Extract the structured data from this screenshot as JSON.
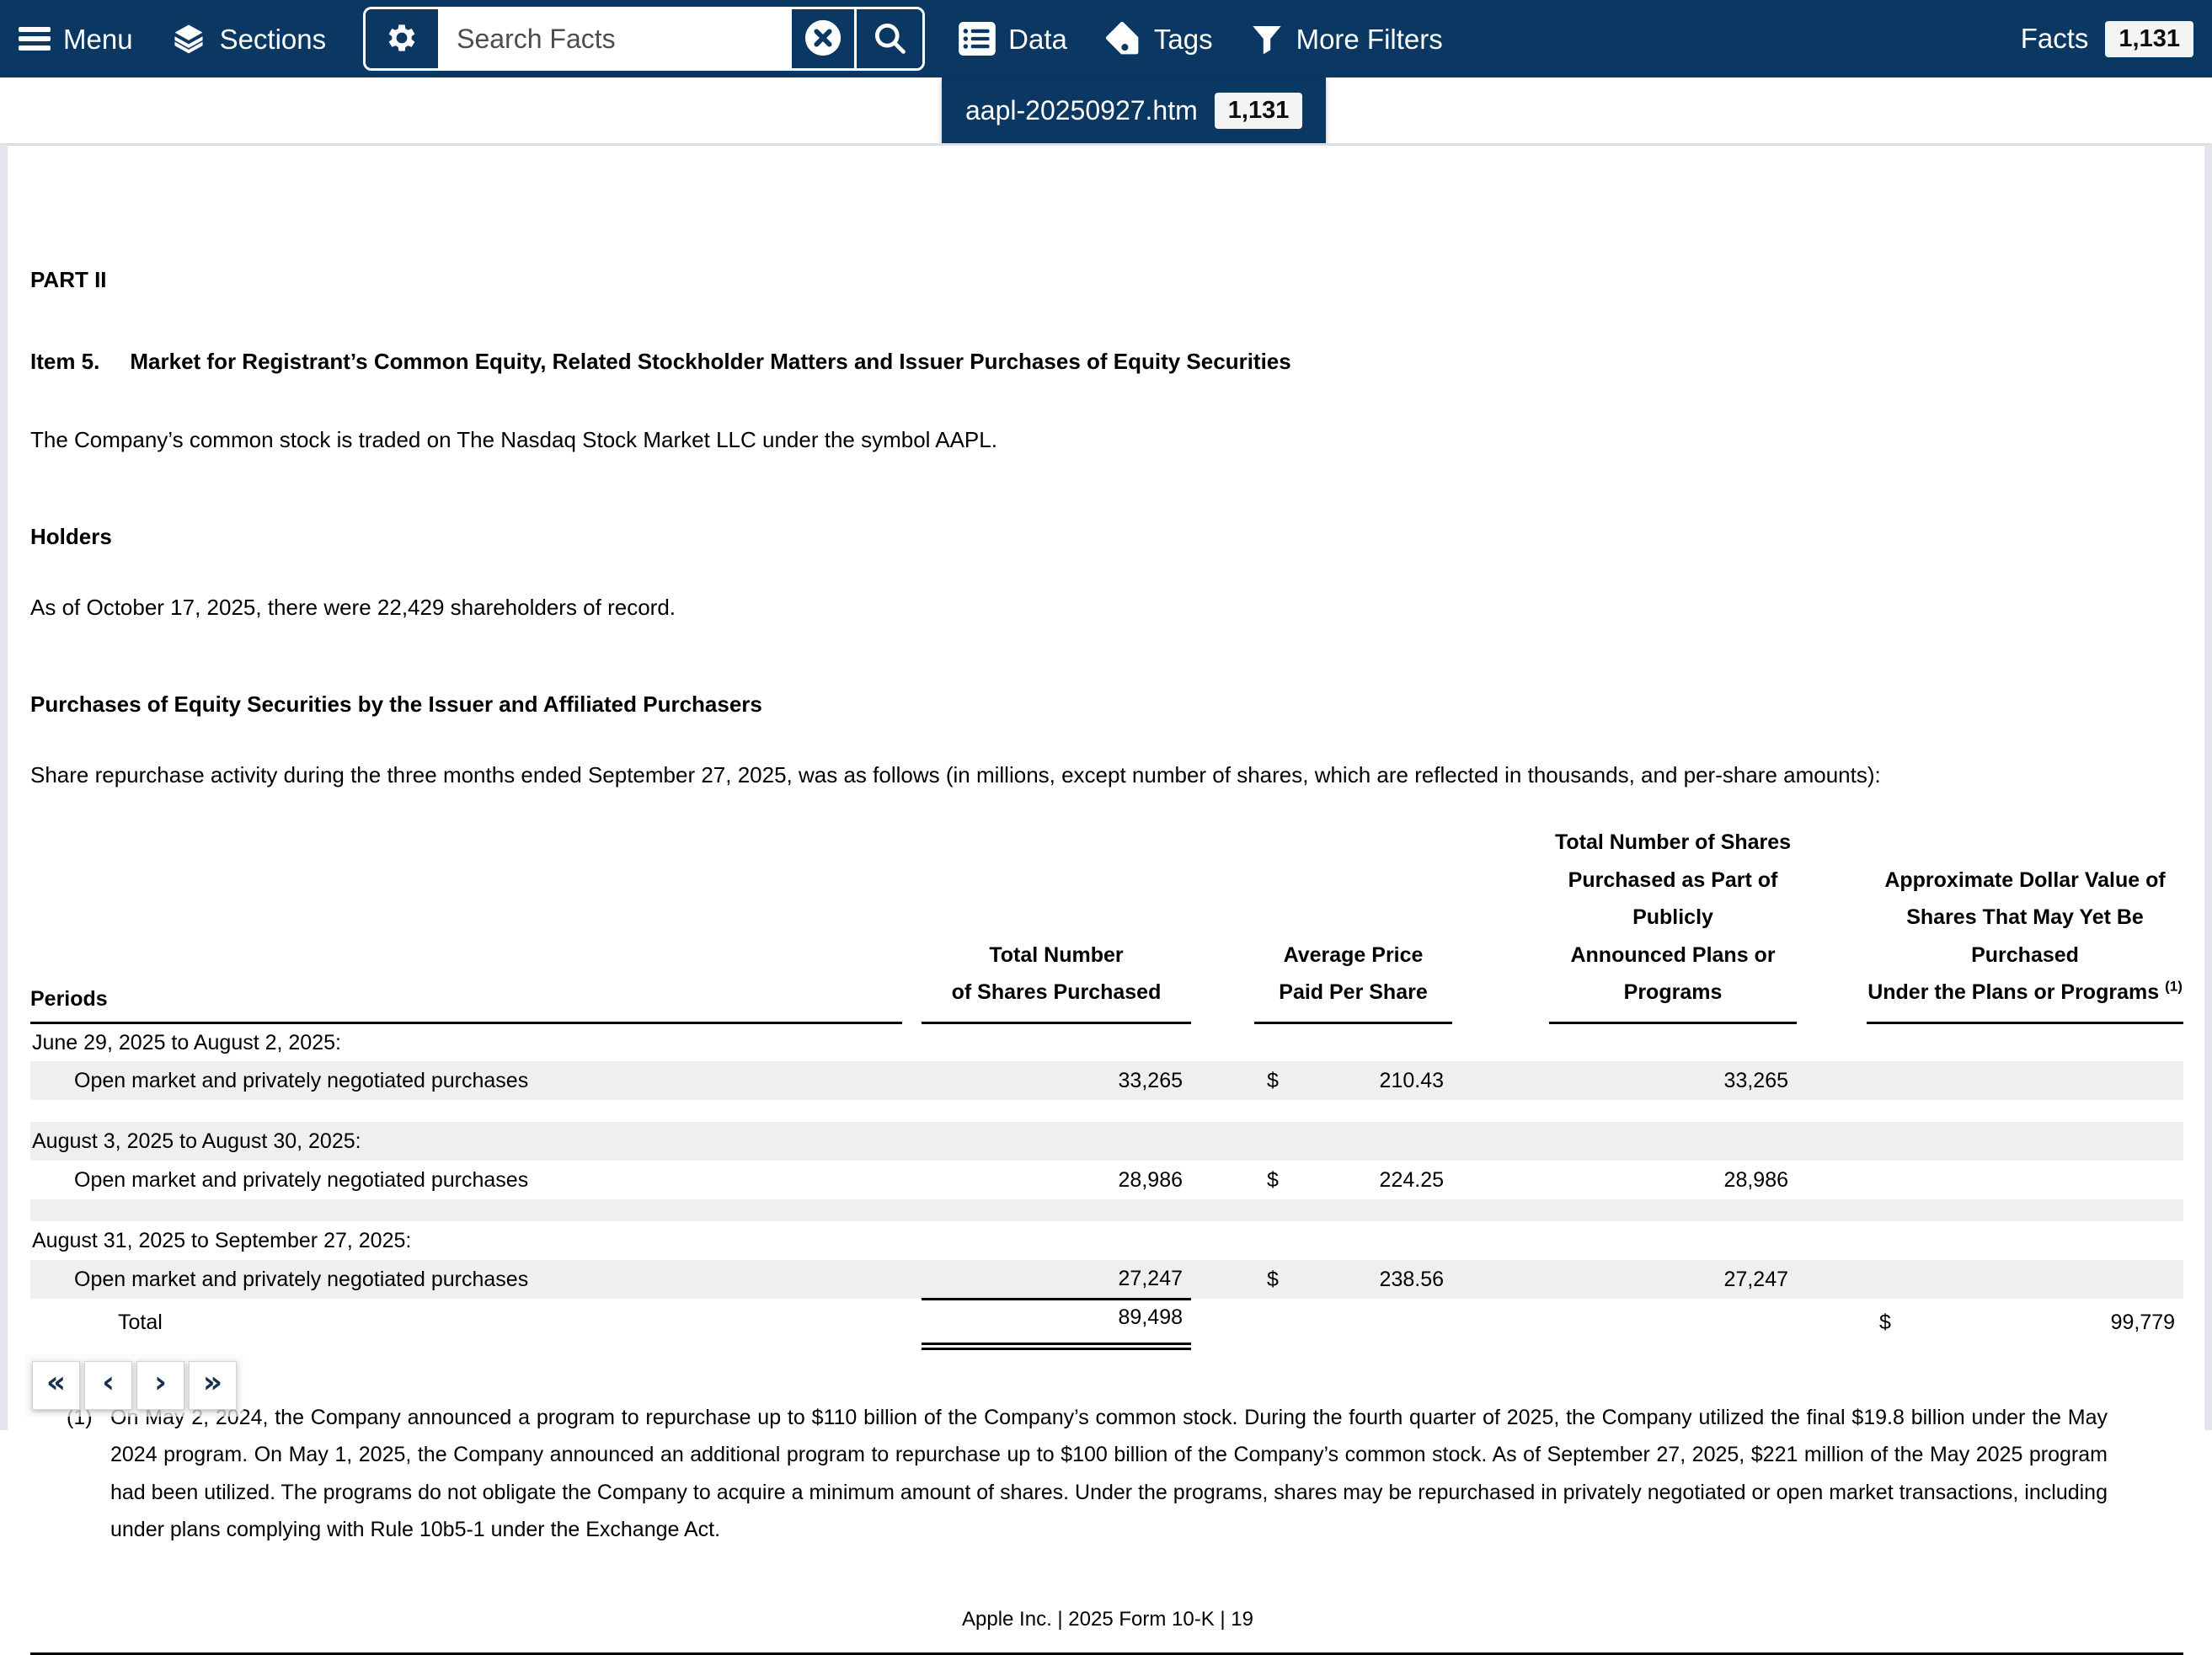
{
  "colors": {
    "toolbar_navy": "#0a3863",
    "row_shade": "#efefef",
    "panel_border": "#e2e5e9",
    "badge_bg": "#f4f4f4"
  },
  "toolbar": {
    "menu_label": "Menu",
    "sections_label": "Sections",
    "search_placeholder": "Search Facts",
    "data_label": "Data",
    "tags_label": "Tags",
    "more_filters_label": "More Filters",
    "facts_label": "Facts",
    "facts_count": "1,131"
  },
  "tab": {
    "filename": "aapl-20250927.htm",
    "count": "1,131"
  },
  "document": {
    "part_heading": "PART II",
    "item_number": "Item 5.",
    "item_title": "Market for Registrant’s Common Equity, Related Stockholder Matters and Issuer Purchases of Equity Securities",
    "para_stock": "The Company’s common stock is traded on The Nasdaq Stock Market LLC under the symbol AAPL.",
    "holders_heading": "Holders",
    "para_holders": "As of October 17, 2025, there were 22,429 shareholders of record.",
    "purchases_heading": "Purchases of Equity Securities by the Issuer and Affiliated Purchasers",
    "para_repurchase": "Share repurchase activity during the three months ended September 27, 2025, was as follows (in millions, except number of shares, which are reflected in thousands, and per-share amounts):",
    "footnote_marker": "(1)",
    "footnote_text": "On May 2, 2024, the Company announced a program to repurchase up to $110 billion of the Company’s common stock. During the fourth quarter of 2025, the Company utilized the final $19.8 billion under the May 2024 program. On May 1, 2025, the Company announced an additional program to repurchase up to $100 billion of the Company’s common stock. As of September 27, 2025, $221 million of the May 2025 program had been utilized. The programs do not obligate the Company to acquire a minimum amount of shares. Under the programs, shares may be repurchased in privately negotiated or open market transactions, including under plans complying with Rule 10b5-1 under the Exchange Act.",
    "footer_text": "Apple Inc. | 2025 Form 10-K | 19"
  },
  "table": {
    "col_periods": "Periods",
    "col_shares": "Total Number\nof Shares Purchased",
    "col_price": "Average Price\nPaid Per Share",
    "col_plan_shares": "Total Number of Shares\nPurchased as Part of Publicly\nAnnounced Plans or Programs",
    "col_value_lines": "Approximate Dollar Value of\nShares That May Yet Be Purchased",
    "col_value_last": "Under the Plans or Programs",
    "col_value_sup": "(1)",
    "rows": [
      {
        "type": "period",
        "label": "June 29, 2025 to August 2, 2025:",
        "shaded": false
      },
      {
        "type": "data",
        "label": "Open market and privately negotiated purchases",
        "shares": "33,265",
        "dollar": "$",
        "price": "210.43",
        "plan_shares": "33,265",
        "shaded": true
      },
      {
        "type": "spacer",
        "shaded": false
      },
      {
        "type": "period",
        "label": "August 3, 2025 to August 30, 2025:",
        "shaded": true
      },
      {
        "type": "data",
        "label": "Open market and privately negotiated purchases",
        "shares": "28,986",
        "dollar": "$",
        "price": "224.25",
        "plan_shares": "28,986",
        "shaded": false
      },
      {
        "type": "spacer",
        "shaded": true
      },
      {
        "type": "period",
        "label": "August 31, 2025 to September 27, 2025:",
        "shaded": false
      },
      {
        "type": "data",
        "label": "Open market and privately negotiated purchases",
        "shares": "27,247",
        "dollar": "$",
        "price": "238.56",
        "plan_shares": "27,247",
        "shaded": true,
        "underline": true
      },
      {
        "type": "total",
        "label": "Total",
        "shares": "89,498",
        "dollar": "$",
        "value": "99,779",
        "shaded": false
      }
    ]
  },
  "pager": {
    "first": "«",
    "prev": "‹",
    "next": "›",
    "last": "»"
  }
}
